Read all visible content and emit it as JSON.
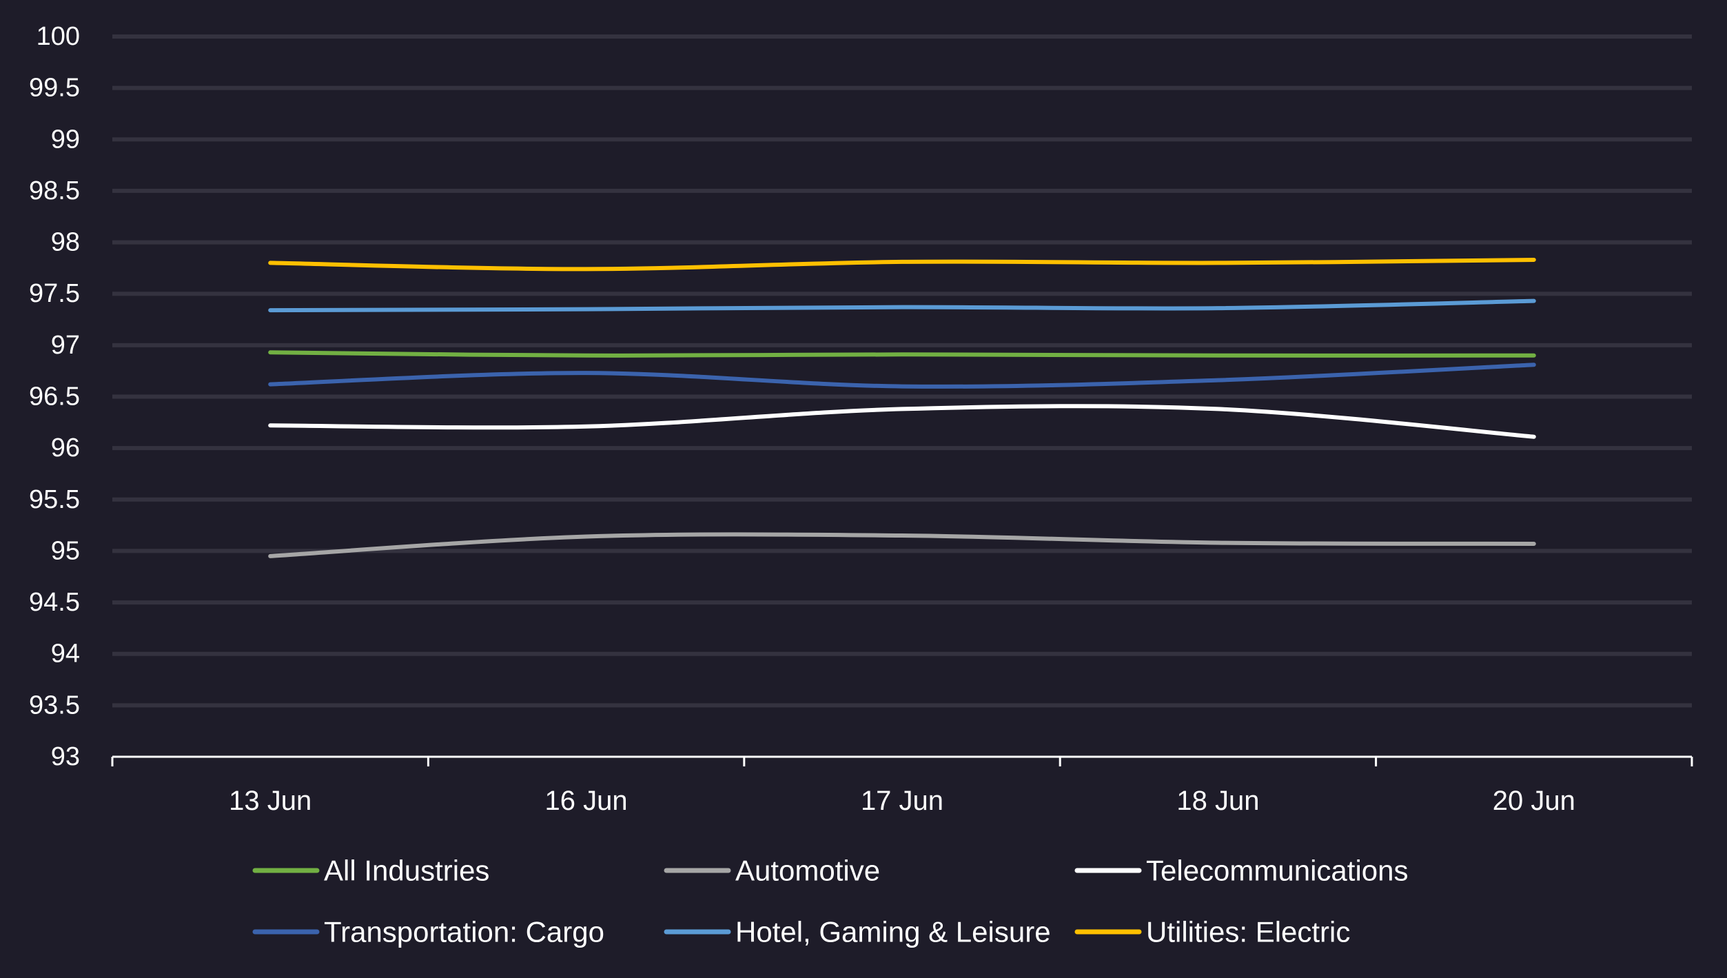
{
  "chart_data": {
    "type": "line",
    "categories": [
      "13 Jun",
      "16 Jun",
      "17 Jun",
      "18 Jun",
      "20 Jun"
    ],
    "ylim": [
      93,
      100
    ],
    "yticks": [
      "100",
      "99.5",
      "99",
      "98.5",
      "98",
      "97.5",
      "97",
      "96.5",
      "96",
      "95.5",
      "95",
      "94.5",
      "94",
      "93.5",
      "93"
    ],
    "grid": true,
    "legend_position": "bottom",
    "colors": {
      "background": "#1e1c29",
      "gridline": "#34323f",
      "axis": "#ffffff",
      "text": "#ffffff"
    },
    "series": [
      {
        "name": "All Industries",
        "color": "#72b043",
        "values": [
          96.93,
          96.9,
          96.91,
          96.9,
          96.9
        ]
      },
      {
        "name": "Automotive",
        "color": "#a6a6a6",
        "values": [
          94.95,
          95.14,
          95.15,
          95.08,
          95.07
        ]
      },
      {
        "name": "Telecommunications",
        "color": "#ffffff",
        "values": [
          96.22,
          96.21,
          96.38,
          96.38,
          96.11
        ]
      },
      {
        "name": "Transportation: Cargo",
        "color": "#3b63ad",
        "values": [
          96.62,
          96.73,
          96.6,
          96.66,
          96.81
        ]
      },
      {
        "name": "Hotel, Gaming & Leisure",
        "color": "#5b9bd5",
        "values": [
          97.34,
          97.35,
          97.37,
          97.36,
          97.43
        ]
      },
      {
        "name": "Utilities: Electric",
        "color": "#ffc000",
        "values": [
          97.8,
          97.74,
          97.81,
          97.8,
          97.83
        ]
      }
    ]
  }
}
